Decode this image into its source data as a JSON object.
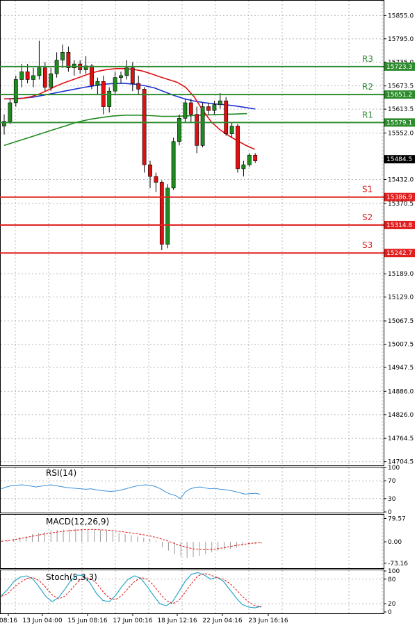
{
  "chart_data": [
    {
      "type": "candlestick",
      "panel": "price",
      "y_ticks": [
        "15855.0",
        "15795.0",
        "15735.0",
        "15673.5",
        "15613.5",
        "15552.0",
        "15432.0",
        "15370.5",
        "15189.0",
        "15129.0",
        "15067.5",
        "15007.5",
        "14947.5",
        "14886.0",
        "14826.0",
        "14764.5",
        "14704.5"
      ],
      "ylim": [
        14695,
        15895
      ],
      "last_price": "15484.5",
      "levels": [
        {
          "name": "R3",
          "value": 15723.3,
          "label": "15723.3",
          "color": "#2e8b2e"
        },
        {
          "name": "R2",
          "value": 15651.2,
          "label": "15651.2",
          "color": "#2e8b2e"
        },
        {
          "name": "R1",
          "value": 15579.1,
          "label": "15579.1",
          "color": "#2e8b2e"
        },
        {
          "name": "S1",
          "value": 15386.9,
          "label": "15386.9",
          "color": "#e02020"
        },
        {
          "name": "S2",
          "value": 15314.8,
          "label": "15314.8",
          "color": "#e02020"
        },
        {
          "name": "S3",
          "value": 15242.7,
          "label": "15242.7",
          "color": "#e02020"
        }
      ],
      "candles": [
        {
          "o": 15570,
          "h": 15600,
          "l": 15548,
          "c": 15582
        },
        {
          "o": 15582,
          "h": 15640,
          "l": 15575,
          "c": 15630
        },
        {
          "o": 15630,
          "h": 15700,
          "l": 15620,
          "c": 15690
        },
        {
          "o": 15690,
          "h": 15730,
          "l": 15670,
          "c": 15710
        },
        {
          "o": 15710,
          "h": 15730,
          "l": 15680,
          "c": 15690
        },
        {
          "o": 15690,
          "h": 15720,
          "l": 15670,
          "c": 15700
        },
        {
          "o": 15700,
          "h": 15790,
          "l": 15690,
          "c": 15720
        },
        {
          "o": 15720,
          "h": 15735,
          "l": 15660,
          "c": 15670
        },
        {
          "o": 15670,
          "h": 15720,
          "l": 15660,
          "c": 15705
        },
        {
          "o": 15705,
          "h": 15760,
          "l": 15695,
          "c": 15740
        },
        {
          "o": 15740,
          "h": 15780,
          "l": 15720,
          "c": 15760
        },
        {
          "o": 15760,
          "h": 15775,
          "l": 15710,
          "c": 15720
        },
        {
          "o": 15720,
          "h": 15740,
          "l": 15700,
          "c": 15730
        },
        {
          "o": 15730,
          "h": 15740,
          "l": 15705,
          "c": 15715
        },
        {
          "o": 15715,
          "h": 15750,
          "l": 15705,
          "c": 15725
        },
        {
          "o": 15725,
          "h": 15730,
          "l": 15665,
          "c": 15675
        },
        {
          "o": 15675,
          "h": 15695,
          "l": 15650,
          "c": 15685
        },
        {
          "o": 15685,
          "h": 15700,
          "l": 15600,
          "c": 15620
        },
        {
          "o": 15620,
          "h": 15670,
          "l": 15605,
          "c": 15660
        },
        {
          "o": 15660,
          "h": 15710,
          "l": 15650,
          "c": 15695
        },
        {
          "o": 15695,
          "h": 15710,
          "l": 15680,
          "c": 15700
        },
        {
          "o": 15700,
          "h": 15740,
          "l": 15690,
          "c": 15720
        },
        {
          "o": 15720,
          "h": 15735,
          "l": 15660,
          "c": 15680
        },
        {
          "o": 15680,
          "h": 15700,
          "l": 15650,
          "c": 15665
        },
        {
          "o": 15665,
          "h": 15670,
          "l": 15450,
          "c": 15470
        },
        {
          "o": 15470,
          "h": 15480,
          "l": 15410,
          "c": 15440
        },
        {
          "o": 15440,
          "h": 15450,
          "l": 15400,
          "c": 15425
        },
        {
          "o": 15425,
          "h": 15430,
          "l": 15250,
          "c": 15265
        },
        {
          "o": 15265,
          "h": 15420,
          "l": 15255,
          "c": 15410
        },
        {
          "o": 15410,
          "h": 15540,
          "l": 15405,
          "c": 15530
        },
        {
          "o": 15530,
          "h": 15600,
          "l": 15520,
          "c": 15590
        },
        {
          "o": 15590,
          "h": 15640,
          "l": 15580,
          "c": 15630
        },
        {
          "o": 15630,
          "h": 15640,
          "l": 15580,
          "c": 15600
        },
        {
          "o": 15600,
          "h": 15620,
          "l": 15500,
          "c": 15520
        },
        {
          "o": 15520,
          "h": 15630,
          "l": 15515,
          "c": 15620
        },
        {
          "o": 15620,
          "h": 15630,
          "l": 15600,
          "c": 15610
        },
        {
          "o": 15610,
          "h": 15635,
          "l": 15600,
          "c": 15625
        },
        {
          "o": 15625,
          "h": 15655,
          "l": 15615,
          "c": 15635
        },
        {
          "o": 15635,
          "h": 15645,
          "l": 15545,
          "c": 15550
        },
        {
          "o": 15550,
          "h": 15580,
          "l": 15540,
          "c": 15570
        },
        {
          "o": 15570,
          "h": 15575,
          "l": 15450,
          "c": 15460
        },
        {
          "o": 15460,
          "h": 15480,
          "l": 15440,
          "c": 15470
        },
        {
          "o": 15470,
          "h": 15500,
          "l": 15465,
          "c": 15495
        },
        {
          "o": 15495,
          "h": 15500,
          "l": 15475,
          "c": 15480
        }
      ],
      "ma_red": [
        15640,
        15640,
        15641,
        15645,
        15652,
        15662,
        15673,
        15682,
        15690,
        15698,
        15706,
        15712,
        15716,
        15718,
        15718,
        15716,
        15712,
        15705,
        15697,
        15690,
        15683,
        15670,
        15645,
        15610,
        15580,
        15560,
        15545,
        15532,
        15520,
        15510
      ],
      "ma_blue": [
        15640,
        15641,
        15642,
        15645,
        15650,
        15655,
        15660,
        15665,
        15670,
        15674,
        15678,
        15680,
        15680,
        15678,
        15674,
        15668,
        15658,
        15648,
        15640,
        15634,
        15630,
        15627,
        15625,
        15622,
        15618,
        15614
      ],
      "ma_green": [
        15520,
        15530,
        15540,
        15550,
        15560,
        15570,
        15580,
        15587,
        15592,
        15596,
        15598,
        15598,
        15597,
        15595,
        15595,
        15596,
        15598,
        15599,
        15600,
        15601,
        15602
      ],
      "x_labels": [
        "08:16",
        "13 Jun 04:00",
        "15 Jun 08:16",
        "17 Jun 00:16",
        "18 Jun 12:16",
        "22 Jun 04:16",
        "23 Jun 16:16"
      ]
    },
    {
      "type": "line",
      "panel": "rsi",
      "title": "RSI(14)",
      "y_ticks": [
        "100",
        "70",
        "30",
        "0"
      ],
      "ylim": [
        0,
        100
      ],
      "values": [
        52,
        56,
        59,
        60,
        61,
        60,
        58,
        56,
        58,
        60,
        61,
        59,
        57,
        55,
        54,
        53,
        52,
        51,
        52,
        50,
        48,
        47,
        46,
        47,
        49,
        52,
        55,
        58,
        60,
        61,
        60,
        57,
        52,
        45,
        40,
        37,
        30,
        45,
        52,
        55,
        56,
        54,
        52,
        53,
        51,
        50,
        48,
        46,
        43,
        40,
        41,
        42,
        40
      ]
    },
    {
      "type": "bar",
      "panel": "macd",
      "title": "MACD(12,26,9)",
      "y_ticks": [
        "79.57",
        "0.00",
        "-73.16"
      ],
      "ylim": [
        -90,
        95
      ],
      "values": [
        2,
        5,
        10,
        15,
        20,
        26,
        30,
        34,
        38,
        40,
        42,
        44,
        45,
        45,
        44,
        43,
        41,
        38,
        34,
        30,
        26,
        22,
        18,
        14,
        10,
        4,
        -18,
        -30,
        -42,
        -50,
        -55,
        -52,
        -48,
        -42,
        -36,
        -30,
        -26,
        -24,
        -20,
        -14,
        -10,
        -8,
        -6
      ],
      "signal": [
        2,
        4,
        7,
        11,
        15,
        19,
        23,
        27,
        30,
        33,
        36,
        38,
        40,
        41,
        42,
        42,
        41,
        40,
        38,
        36,
        33,
        30,
        27,
        24,
        20,
        15,
        9,
        2,
        -6,
        -13,
        -19,
        -24,
        -26,
        -27,
        -26,
        -23,
        -20,
        -16,
        -12,
        -9,
        -6,
        -4,
        -3
      ]
    },
    {
      "type": "line",
      "panel": "stoch",
      "title": "Stoch(5,3,3)",
      "y_ticks": [
        "100",
        "80",
        "20",
        "0"
      ],
      "ylim": [
        0,
        100
      ],
      "k": [
        40,
        55,
        75,
        85,
        88,
        80,
        60,
        38,
        25,
        35,
        55,
        78,
        90,
        88,
        70,
        45,
        28,
        25,
        40,
        62,
        80,
        88,
        82,
        62,
        40,
        20,
        15,
        25,
        50,
        75,
        92,
        96,
        90,
        80,
        85,
        75,
        55,
        35,
        18,
        12,
        10,
        14
      ],
      "d": [
        38,
        45,
        60,
        72,
        82,
        84,
        76,
        60,
        42,
        32,
        38,
        55,
        72,
        84,
        82,
        70,
        50,
        34,
        30,
        40,
        58,
        74,
        84,
        80,
        65,
        45,
        28,
        20,
        28,
        48,
        70,
        88,
        94,
        90,
        84,
        80,
        70,
        55,
        38,
        24,
        15,
        12
      ]
    }
  ]
}
